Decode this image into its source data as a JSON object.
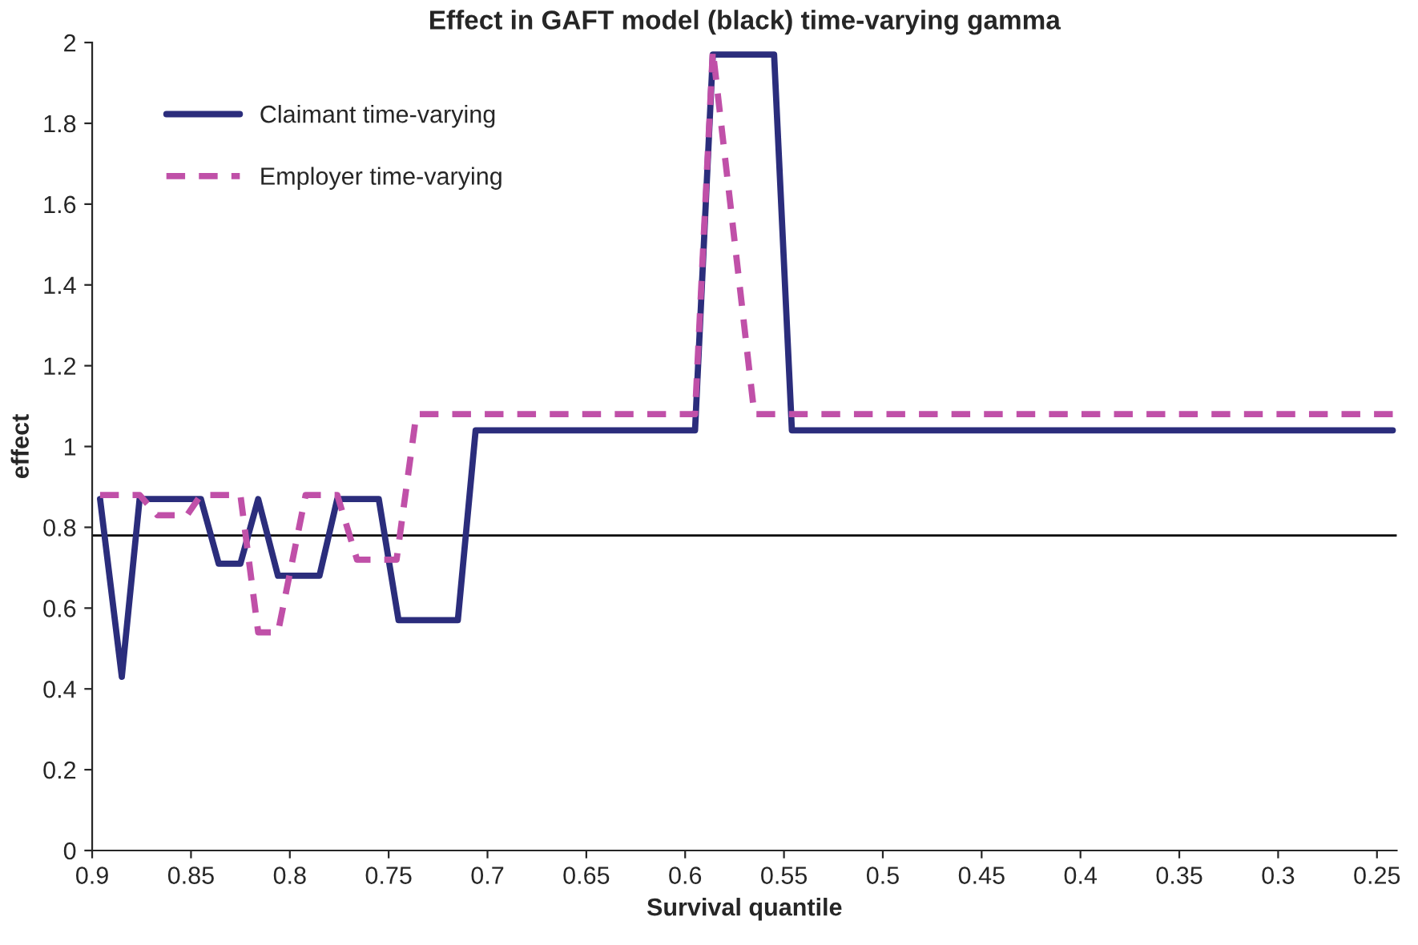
{
  "chart_data": {
    "type": "line",
    "title": "Effect in GAFT model (black) time-varying gamma",
    "xlabel": "Survival quantile",
    "ylabel": "effect",
    "series": [
      {
        "name": "Claimant time-varying",
        "color": "#2b2d7c",
        "line_style": "solid",
        "x": [
          0.896,
          0.885,
          0.876,
          0.845,
          0.836,
          0.825,
          0.816,
          0.806,
          0.785,
          0.776,
          0.755,
          0.745,
          0.715,
          0.706,
          0.595,
          0.586,
          0.555,
          0.546,
          0.242
        ],
        "values": [
          0.87,
          0.43,
          0.87,
          0.87,
          0.71,
          0.71,
          0.87,
          0.68,
          0.68,
          0.87,
          0.87,
          0.57,
          0.57,
          1.04,
          1.04,
          1.97,
          1.97,
          1.04,
          1.04
        ]
      },
      {
        "name": "Employer time-varying",
        "color": "#c050a8",
        "line_style": "dashed",
        "x": [
          0.896,
          0.876,
          0.867,
          0.852,
          0.845,
          0.825,
          0.816,
          0.806,
          0.792,
          0.776,
          0.766,
          0.746,
          0.736,
          0.595,
          0.586,
          0.565,
          0.242
        ],
        "values": [
          0.88,
          0.88,
          0.83,
          0.83,
          0.88,
          0.88,
          0.54,
          0.54,
          0.88,
          0.88,
          0.72,
          0.72,
          1.08,
          1.08,
          1.98,
          1.08,
          1.08
        ]
      }
    ],
    "xlim": [
      0.9,
      0.24
    ],
    "xticks": [
      0.9,
      0.85,
      0.8,
      0.75,
      0.7,
      0.65,
      0.6,
      0.55,
      0.5,
      0.45,
      0.4,
      0.35,
      0.3,
      0.25
    ],
    "ylim": [
      0,
      2
    ],
    "yticks": [
      0,
      0.2,
      0.4,
      0.6,
      0.8,
      1,
      1.2,
      1.4,
      1.6,
      1.8,
      2
    ],
    "ref_lines": [
      {
        "axis": "y",
        "value": 0.78,
        "color": "#000000",
        "line_style": "solid"
      }
    ],
    "grid": false,
    "legend": "top left",
    "marker": "none"
  }
}
